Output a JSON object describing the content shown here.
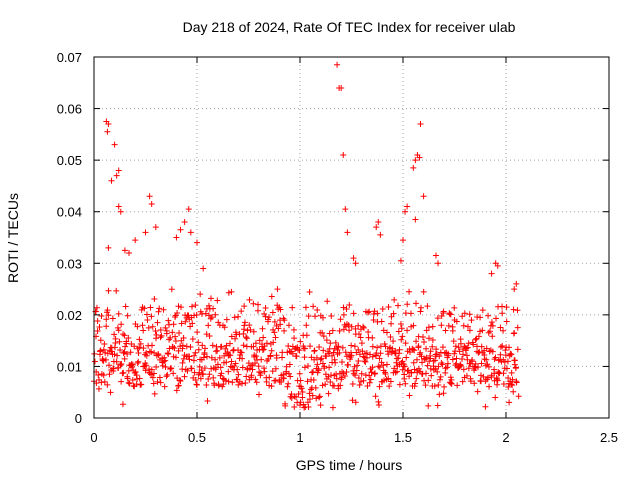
{
  "chart_data": {
    "type": "scatter",
    "title": "Day 218 of 2024, Rate Of TEC Index for receiver ulab",
    "xlabel": "GPS time / hours",
    "ylabel": "ROTI / TECUs",
    "xlim": [
      0,
      2.5
    ],
    "ylim": [
      0,
      0.07
    ],
    "x_ticks": [
      0,
      0.5,
      1,
      1.5,
      2,
      2.5
    ],
    "x_tick_labels": [
      "0",
      "0.5",
      "1",
      "1.5",
      "2",
      "2.5"
    ],
    "y_ticks": [
      0,
      0.01,
      0.02,
      0.03,
      0.04,
      0.05,
      0.06,
      0.07
    ],
    "y_tick_labels": [
      "0",
      "0.01",
      "0.02",
      "0.03",
      "0.04",
      "0.05",
      "0.06",
      "0.07"
    ],
    "grid": true,
    "marker": "+",
    "series": [
      {
        "name": "ROTI",
        "color": "#ff0000",
        "x_range": [
          0,
          2.06
        ],
        "typical_range": [
          0.002,
          0.025
        ],
        "highlights": [
          {
            "x": 0.06,
            "y": 0.0575
          },
          {
            "x": 0.07,
            "y": 0.057
          },
          {
            "x": 0.065,
            "y": 0.0555
          },
          {
            "x": 0.1,
            "y": 0.053
          },
          {
            "x": 0.12,
            "y": 0.048
          },
          {
            "x": 0.11,
            "y": 0.047
          },
          {
            "x": 0.085,
            "y": 0.046
          },
          {
            "x": 0.12,
            "y": 0.041
          },
          {
            "x": 0.13,
            "y": 0.04
          },
          {
            "x": 0.07,
            "y": 0.033
          },
          {
            "x": 0.15,
            "y": 0.0325
          },
          {
            "x": 0.17,
            "y": 0.032
          },
          {
            "x": 0.2,
            "y": 0.0345
          },
          {
            "x": 0.27,
            "y": 0.043
          },
          {
            "x": 0.28,
            "y": 0.0415
          },
          {
            "x": 0.25,
            "y": 0.036
          },
          {
            "x": 0.3,
            "y": 0.037
          },
          {
            "x": 0.46,
            "y": 0.0405
          },
          {
            "x": 0.44,
            "y": 0.038
          },
          {
            "x": 0.42,
            "y": 0.0365
          },
          {
            "x": 0.47,
            "y": 0.036
          },
          {
            "x": 0.4,
            "y": 0.035
          },
          {
            "x": 0.5,
            "y": 0.034
          },
          {
            "x": 0.53,
            "y": 0.029
          },
          {
            "x": 1.18,
            "y": 0.0685
          },
          {
            "x": 1.19,
            "y": 0.064
          },
          {
            "x": 1.2,
            "y": 0.064
          },
          {
            "x": 1.21,
            "y": 0.051
          },
          {
            "x": 1.22,
            "y": 0.0405
          },
          {
            "x": 1.23,
            "y": 0.036
          },
          {
            "x": 1.26,
            "y": 0.031
          },
          {
            "x": 1.27,
            "y": 0.03
          },
          {
            "x": 1.38,
            "y": 0.038
          },
          {
            "x": 1.37,
            "y": 0.037
          },
          {
            "x": 1.39,
            "y": 0.0355
          },
          {
            "x": 1.5,
            "y": 0.0345
          },
          {
            "x": 1.51,
            "y": 0.04
          },
          {
            "x": 1.52,
            "y": 0.041
          },
          {
            "x": 1.49,
            "y": 0.0305
          },
          {
            "x": 1.55,
            "y": 0.0485
          },
          {
            "x": 1.56,
            "y": 0.05
          },
          {
            "x": 1.57,
            "y": 0.051
          },
          {
            "x": 1.58,
            "y": 0.0505
          },
          {
            "x": 1.585,
            "y": 0.057
          },
          {
            "x": 1.6,
            "y": 0.043
          },
          {
            "x": 1.56,
            "y": 0.0385
          },
          {
            "x": 1.66,
            "y": 0.0315
          },
          {
            "x": 1.67,
            "y": 0.03
          },
          {
            "x": 1.95,
            "y": 0.03
          },
          {
            "x": 1.96,
            "y": 0.0295
          },
          {
            "x": 1.93,
            "y": 0.028
          },
          {
            "x": 2.05,
            "y": 0.026
          },
          {
            "x": 2.04,
            "y": 0.025
          },
          {
            "x": 1.02,
            "y": 0.002
          },
          {
            "x": 1.1,
            "y": 0.0025
          },
          {
            "x": 1.16,
            "y": 0.002
          },
          {
            "x": 1.0,
            "y": 0.0025
          }
        ]
      }
    ]
  }
}
